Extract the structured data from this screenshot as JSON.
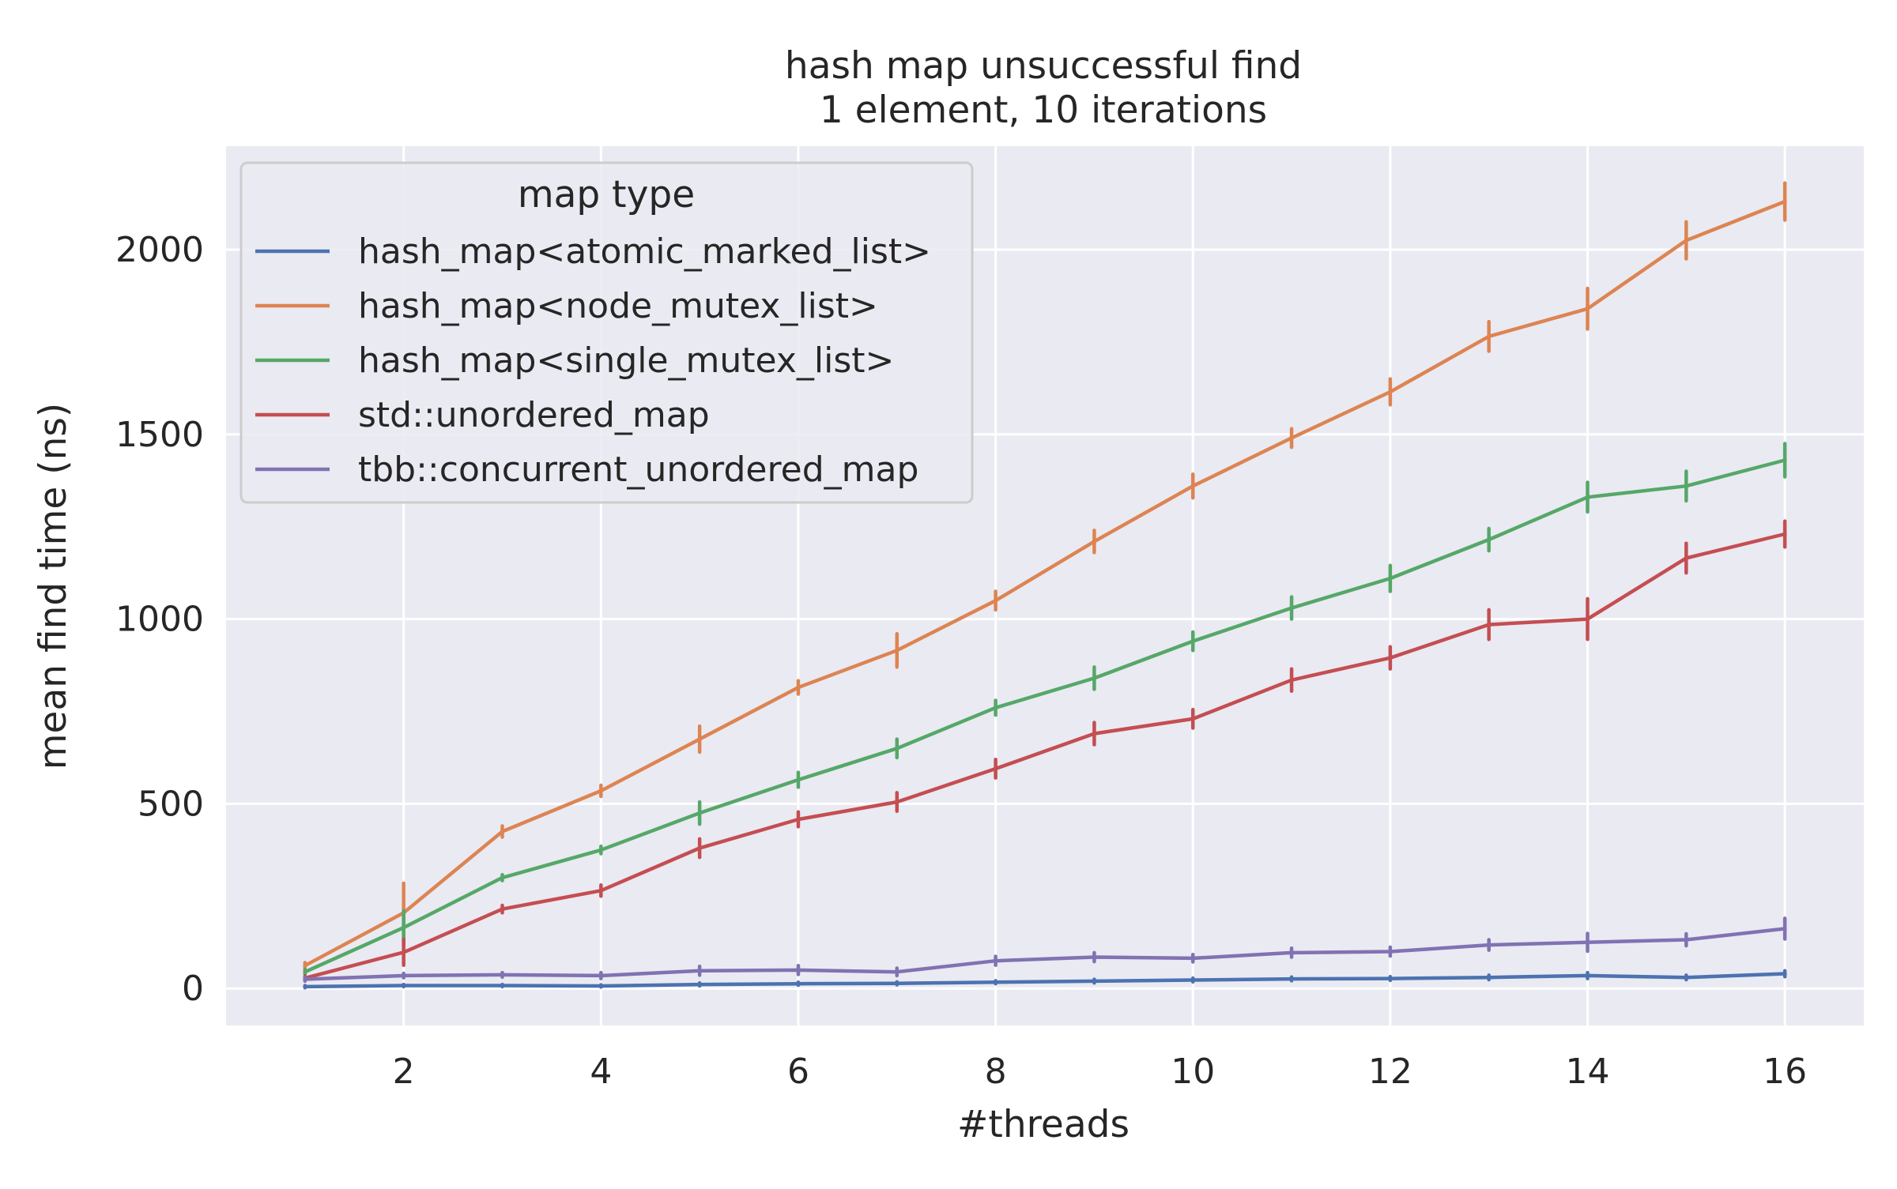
{
  "chart_data": {
    "type": "line",
    "title": "hash map unsuccessful find",
    "subtitle": "1 element, 10 iterations",
    "xlabel": "#threads",
    "ylabel": "mean find time (ns)",
    "xlim": [
      0.2,
      16.8
    ],
    "ylim": [
      -100,
      2280
    ],
    "xticks": [
      2,
      4,
      6,
      8,
      10,
      12,
      14,
      16
    ],
    "yticks": [
      0,
      500,
      1000,
      1500,
      2000
    ],
    "grid": true,
    "legend": {
      "title": "map type",
      "placement": "top-left"
    },
    "x": [
      1,
      2,
      3,
      4,
      5,
      6,
      7,
      8,
      9,
      10,
      11,
      12,
      13,
      14,
      15,
      16
    ],
    "series": [
      {
        "name": "hash_map<atomic_marked_list>",
        "color": "#4c72b0",
        "values": [
          5,
          8,
          8,
          7,
          11,
          13,
          14,
          17,
          20,
          23,
          26,
          27,
          30,
          35,
          30,
          40
        ],
        "err": [
          3,
          3,
          3,
          3,
          4,
          4,
          4,
          4,
          5,
          5,
          5,
          5,
          6,
          8,
          6,
          8
        ]
      },
      {
        "name": "hash_map<node_mutex_list>",
        "color": "#dd8452",
        "values": [
          62,
          205,
          425,
          535,
          675,
          815,
          915,
          1050,
          1210,
          1360,
          1490,
          1615,
          1765,
          1840,
          2025,
          2130
        ],
        "err": [
          8,
          80,
          15,
          15,
          35,
          18,
          45,
          25,
          30,
          32,
          25,
          35,
          40,
          55,
          50,
          50
        ]
      },
      {
        "name": "hash_map<single_mutex_list>",
        "color": "#55a868",
        "values": [
          45,
          165,
          300,
          375,
          475,
          565,
          650,
          760,
          840,
          940,
          1030,
          1110,
          1215,
          1330,
          1360,
          1430
        ],
        "err": [
          6,
          45,
          8,
          10,
          30,
          20,
          25,
          20,
          30,
          25,
          30,
          35,
          30,
          40,
          40,
          45
        ]
      },
      {
        "name": "std::unordered_map",
        "color": "#c44e52",
        "values": [
          28,
          98,
          215,
          265,
          380,
          458,
          505,
          595,
          690,
          730,
          835,
          895,
          985,
          1000,
          1165,
          1230
        ],
        "err": [
          6,
          35,
          10,
          15,
          25,
          20,
          25,
          25,
          30,
          25,
          30,
          30,
          40,
          55,
          40,
          35
        ]
      },
      {
        "name": "tbb::concurrent_unordered_map",
        "color": "#8172b3",
        "values": [
          25,
          35,
          37,
          35,
          48,
          50,
          45,
          75,
          85,
          82,
          97,
          100,
          118,
          125,
          132,
          162
        ],
        "err": [
          5,
          6,
          6,
          8,
          12,
          12,
          10,
          12,
          12,
          10,
          12,
          12,
          14,
          24,
          16,
          28
        ]
      }
    ]
  }
}
